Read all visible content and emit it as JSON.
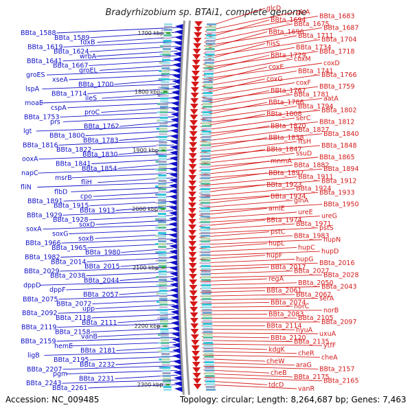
{
  "title": "Bradyrhizobium sp. BTAi1, complete genome",
  "footer": {
    "accession": "Accession: NC_009485",
    "topology": "Topology: circular; Length: 8,264,687 bp; Genes: 7,463"
  },
  "colors": {
    "forward": "#d51818",
    "reverse": "#1010c8",
    "backbone": "#9a9a9a",
    "tick": "#2a9a2a"
  },
  "ticks": [
    "1700 kbp",
    "1800 kbp",
    "1900 kbp",
    "2000 kbp",
    "2100 kbp",
    "2200 kbp",
    "2300 kbp"
  ],
  "left_labels": [
    "BBta_1588",
    "BBta_1589",
    "fdxB",
    "BBta_1619",
    "BBta_1624",
    "wrbA",
    "BBta_1641",
    "BBta_1667",
    "groEL",
    "groES",
    "xseA",
    "BBta_1700",
    "lspA",
    "BBta_1714",
    "ileS",
    "moaE",
    "cspA",
    "proC",
    "BBta_1753",
    "prs",
    "BBta_1762",
    "lgt",
    "BBta_1800",
    "BBta_1783",
    "BBta_1816",
    "BBta_1822",
    "BBta_1830",
    "ooxA",
    "BBta_1841",
    "BBta_1854",
    "napC",
    "msrB",
    "fliH",
    "fliN",
    "flbD",
    "cpo",
    "BBta_1891",
    "BBta_1915",
    "BBta_1913",
    "BBta_1929",
    "BBta_1928",
    "soxD",
    "soxA",
    "soxG",
    "soxB",
    "BBta_1966",
    "BBta_1965",
    "BBta_1980",
    "BBta_1982",
    "BBta_2014",
    "BBta_2015",
    "BBta_2029",
    "BBta_2038",
    "BBta_2044",
    "dppD",
    "dppF",
    "BBta_2057",
    "BBta_2075",
    "BBta_2072",
    "upp",
    "BBta_2092",
    "BBta_2118",
    "BBta_2111",
    "BBta_2119",
    "BBta_2158",
    "vanB",
    "BBta_2159",
    "hemE",
    "BBta_2181",
    "ligB",
    "BBta_2195",
    "BBta_2232",
    "BBta_2207",
    "pgm",
    "BBta_2231",
    "BBta_2243",
    "BBta_2261"
  ],
  "right_labels": [
    "glcD",
    "glcA",
    "BBta_1683",
    "BBta_1694",
    "BBta_1675",
    "BBta_1687",
    "BBta_1696",
    "BBta_1711",
    "BBta_1704",
    "hisS",
    "BBta_1734",
    "BBta_1718",
    "BBta_1729",
    "coxM",
    "coxD",
    "coxE",
    "BBta_1741",
    "BBta_1766",
    "coxG",
    "coxF",
    "BBta_1759",
    "BBta_1767",
    "BBta_1781",
    "aatA",
    "BBta_1786",
    "BBta_1794",
    "BBta_1802",
    "BBta_1808",
    "serC",
    "BBta_1812",
    "BBta_1820",
    "BBta_1827",
    "BBta_1840",
    "BBta_1838",
    "ftsH",
    "BBta_1848",
    "BBta_1847",
    "ssuD",
    "BBta_1865",
    "mnmA",
    "BBta_1882",
    "BBta_1894",
    "BBta_1897",
    "BBta_1911",
    "BBta_1912",
    "BBta_1923",
    "BBta_1924",
    "BBta_1933",
    "BBta_1934",
    "glnA",
    "BBta_1950",
    "amiE",
    "ureE",
    "ureG",
    "BBta_1974",
    "BBta_1971",
    "pstS",
    "pstC",
    "BBta_1983",
    "hupN",
    "hupL",
    "hupC",
    "hupD",
    "hupF",
    "hupG",
    "BBta_2016",
    "BBta_2017",
    "BBta_2027",
    "BBta_2028",
    "regA",
    "BBta_2050",
    "BBta_2043",
    "BBta_2061",
    "BBta_2062",
    "serA",
    "BBta_2074",
    "norC",
    "norB",
    "BBta_2083",
    "BBta_2105",
    "BBta_2097",
    "BBta_2114",
    "hyuA",
    "uxuA",
    "BBta_2120",
    "BBta_2135",
    "ytfF",
    "kdgK",
    "cheR",
    "cheA",
    "cheW",
    "araG",
    "BBta_2157",
    "cheB",
    "BBta_2175",
    "BBta_2165",
    "tdcD",
    "vanR"
  ]
}
